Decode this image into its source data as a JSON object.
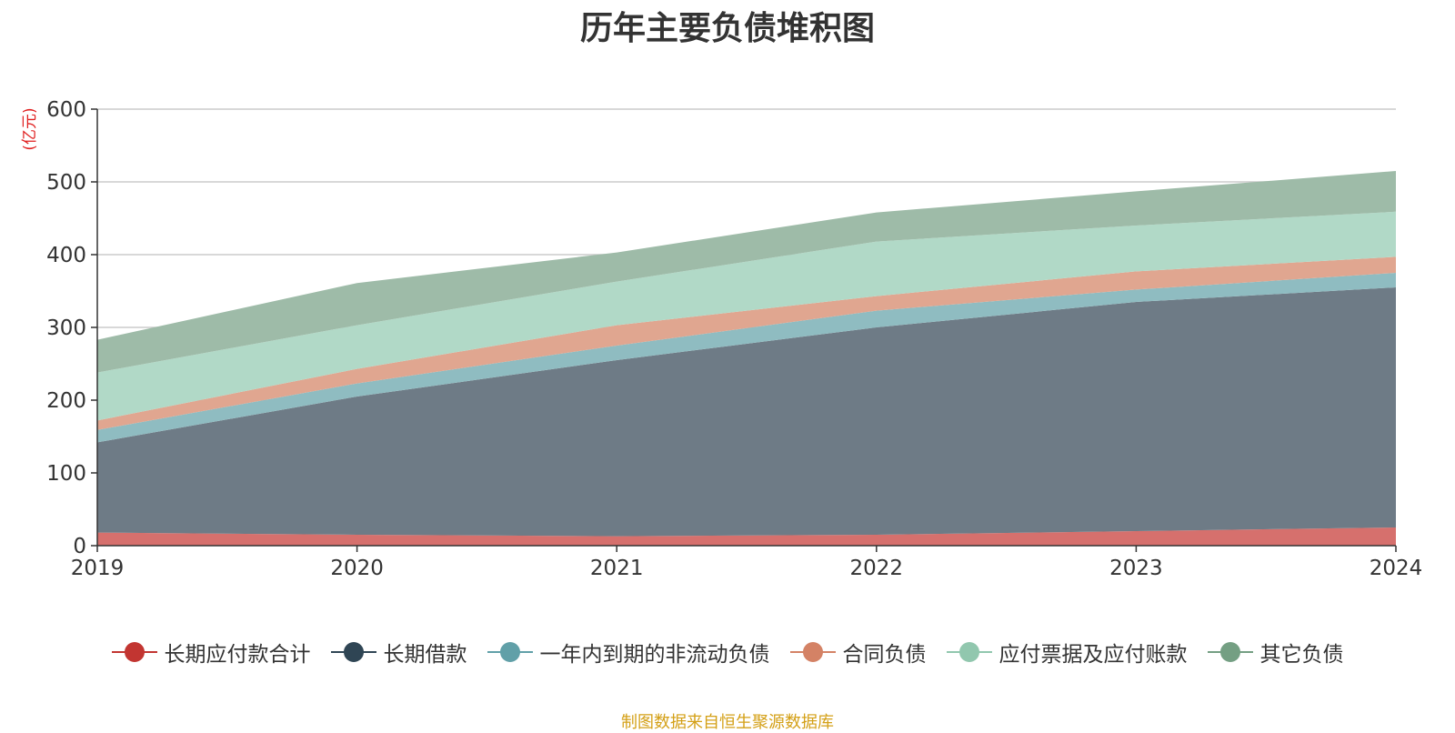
{
  "title": "历年主要负债堆积图",
  "unit_label": "(亿元)",
  "source_note": "制图数据来自恒生聚源数据库",
  "colors": {
    "title": "#333333",
    "unit": "#e02020",
    "source": "#d4a017",
    "grid": "#cccccc",
    "axis": "#333333"
  },
  "chart_data": {
    "type": "area",
    "stacked": true,
    "x": [
      "2019",
      "2020",
      "2021",
      "2022",
      "2023",
      "2024"
    ],
    "ylim": [
      0,
      600
    ],
    "yticks": [
      0,
      100,
      200,
      300,
      400,
      500,
      600
    ],
    "grid": true,
    "legend_position": "bottom",
    "series": [
      {
        "name": "长期应付款合计",
        "color": "#c23531",
        "fill": "#d6706d",
        "values": [
          18,
          15,
          13,
          15,
          20,
          25
        ]
      },
      {
        "name": "长期借款",
        "color": "#2f4554",
        "fill": "#6e7b86",
        "values": [
          124,
          190,
          242,
          285,
          315,
          330
        ]
      },
      {
        "name": "一年内到期的非流动负债",
        "color": "#61a0a8",
        "fill": "#8fbcc1",
        "values": [
          17,
          18,
          20,
          23,
          17,
          20
        ]
      },
      {
        "name": "合同负债",
        "color": "#d48265",
        "fill": "#e0a690",
        "values": [
          13,
          20,
          28,
          20,
          25,
          22
        ]
      },
      {
        "name": "应付票据及应付账款",
        "color": "#91c7ae",
        "fill": "#b1d9c7",
        "values": [
          66,
          60,
          60,
          75,
          63,
          62
        ]
      },
      {
        "name": "其它负债",
        "color": "#749f83",
        "fill": "#9ebba8",
        "values": [
          45,
          58,
          40,
          40,
          47,
          56
        ]
      }
    ]
  }
}
